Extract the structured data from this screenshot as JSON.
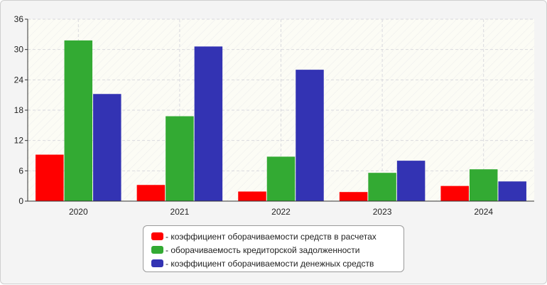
{
  "chart_data": {
    "type": "bar",
    "categories": [
      "2020",
      "2021",
      "2022",
      "2023",
      "2024"
    ],
    "ylim": [
      0,
      36
    ],
    "yticks": [
      "0",
      "6",
      "12",
      "18",
      "24",
      "30",
      "36"
    ],
    "grid": true,
    "legend_position": "bottom-center",
    "series": [
      {
        "name": "- коэффициент оборачиваемости средств в расчетах",
        "color": "#ff0000",
        "values": [
          9.2,
          3.2,
          1.9,
          1.8,
          3.0
        ]
      },
      {
        "name": "- оборачиваемость кредиторской задолженности",
        "color": "#33aa33",
        "values": [
          31.8,
          16.8,
          8.8,
          5.6,
          6.3
        ]
      },
      {
        "name": "- коэффициент оборачиваемости денежных средств",
        "color": "#3333b3",
        "values": [
          21.2,
          30.6,
          26.0,
          8.0,
          3.9
        ]
      }
    ]
  }
}
